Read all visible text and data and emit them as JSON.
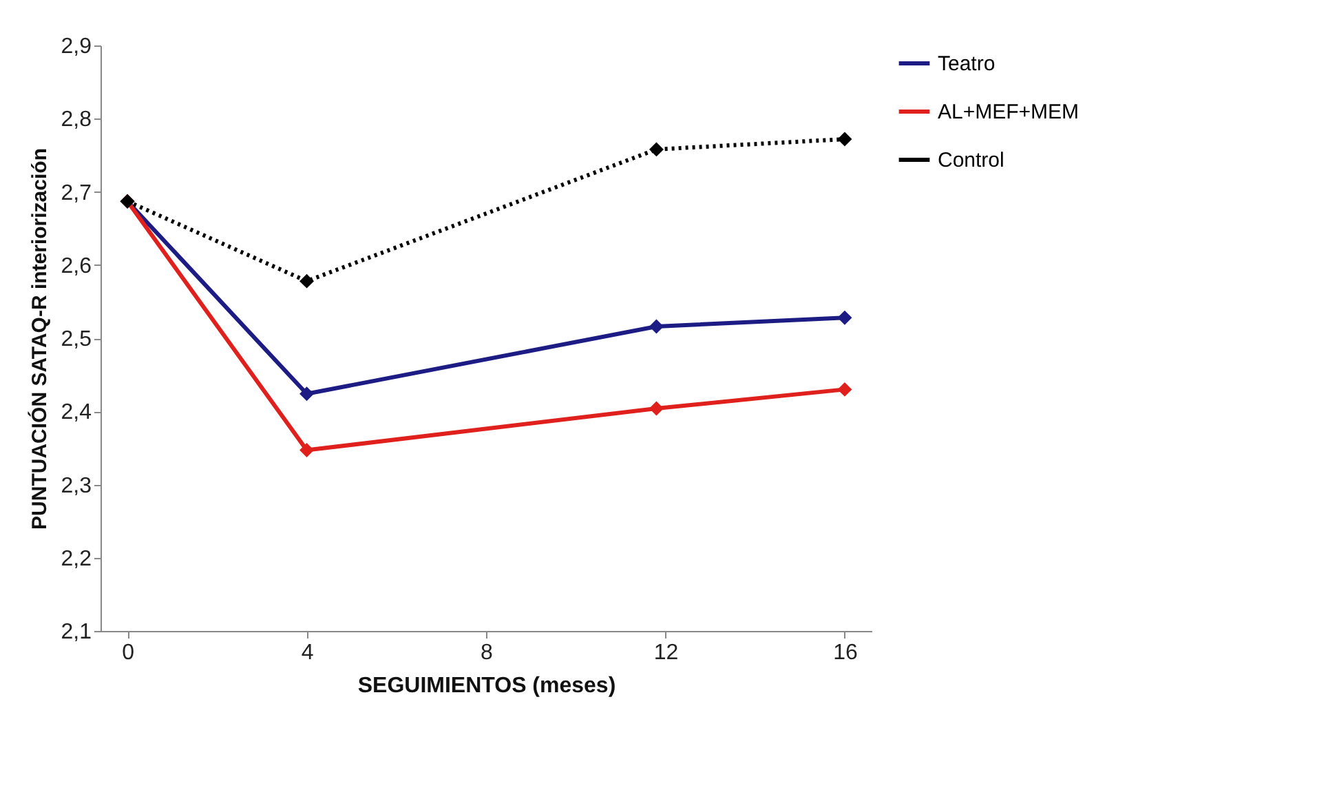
{
  "chart_data": {
    "type": "line",
    "xlabel": "SEGUIMIENTOS (meses)",
    "ylabel": "PUNTUACIÓN  SATAQ-R interiorización",
    "x": [
      0,
      4,
      11.8,
      16
    ],
    "series": [
      {
        "name": "Teatro",
        "color": "#1c1c84",
        "values": [
          2.687,
          2.424,
          2.516,
          2.528
        ]
      },
      {
        "name": "AL+MEF+MEM",
        "color": "#e0201c",
        "values": [
          2.687,
          2.347,
          2.404,
          2.43
        ]
      },
      {
        "name": "Control",
        "color": "#000000",
        "values": [
          2.687,
          2.578,
          2.758,
          2.772
        ],
        "line_style": "dotted"
      }
    ],
    "xlim": [
      -0.6,
      16.6
    ],
    "xticks": [
      0,
      4,
      8,
      12,
      16
    ],
    "ylim": [
      2.1,
      2.9
    ],
    "yticks": [
      {
        "value": 2.1,
        "label": "2,1"
      },
      {
        "value": 2.2,
        "label": "2,2"
      },
      {
        "value": 2.3,
        "label": "2,3"
      },
      {
        "value": 2.4,
        "label": "2,4"
      },
      {
        "value": 2.5,
        "label": "2,5"
      },
      {
        "value": 2.6,
        "label": "2,6"
      },
      {
        "value": 2.7,
        "label": "2,7"
      },
      {
        "value": 2.8,
        "label": "2,8"
      },
      {
        "value": 2.9,
        "label": "2,9"
      }
    ],
    "grid": false,
    "legend": "right",
    "marker": "diamond",
    "line_style": "solid"
  }
}
